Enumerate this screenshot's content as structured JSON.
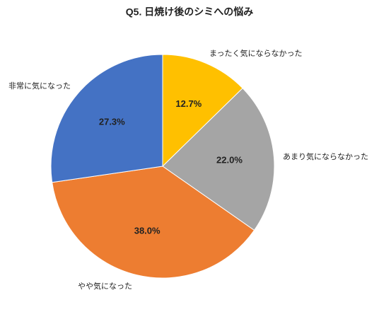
{
  "chart_data": {
    "type": "pie",
    "title": "Q5. 日焼け後のシミへの悩み",
    "categories": [
      "まったく気にならなかった",
      "あまり気にならなかった",
      "やや気になった",
      "非常に気になった"
    ],
    "values": [
      12.7,
      22.0,
      38.0,
      27.3
    ],
    "value_labels": [
      "12.7%",
      "22.0%",
      "38.0%",
      "27.3%"
    ],
    "colors": [
      "#ffc000",
      "#a5a5a5",
      "#ed7d31",
      "#4472c4"
    ]
  }
}
